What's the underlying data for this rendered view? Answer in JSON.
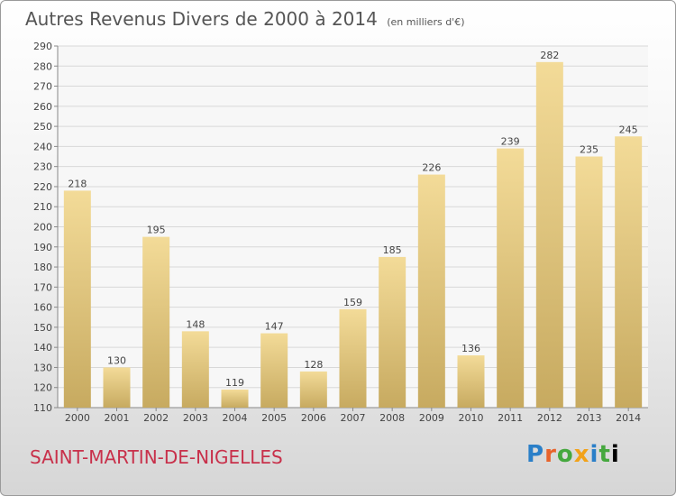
{
  "chart_data": {
    "type": "bar",
    "title": "Autres Revenus Divers de 2000 à 2014",
    "subtitle": "(en milliers d'€)",
    "categories": [
      "2000",
      "2001",
      "2002",
      "2003",
      "2004",
      "2005",
      "2006",
      "2007",
      "2008",
      "2009",
      "2010",
      "2011",
      "2012",
      "2013",
      "2014"
    ],
    "values": [
      218,
      130,
      195,
      148,
      119,
      147,
      128,
      159,
      185,
      226,
      136,
      239,
      282,
      235,
      245
    ],
    "ylim": [
      110,
      290
    ],
    "yticks": [
      110,
      120,
      130,
      140,
      150,
      160,
      170,
      180,
      190,
      200,
      210,
      220,
      230,
      240,
      250,
      260,
      270,
      280,
      290
    ],
    "grid": true,
    "bar_color": "#f0d590",
    "bar_color_bottom": "#c8ac63"
  },
  "commune": "SAINT-MARTIN-DE-NIGELLES",
  "logo": "Proxiti"
}
